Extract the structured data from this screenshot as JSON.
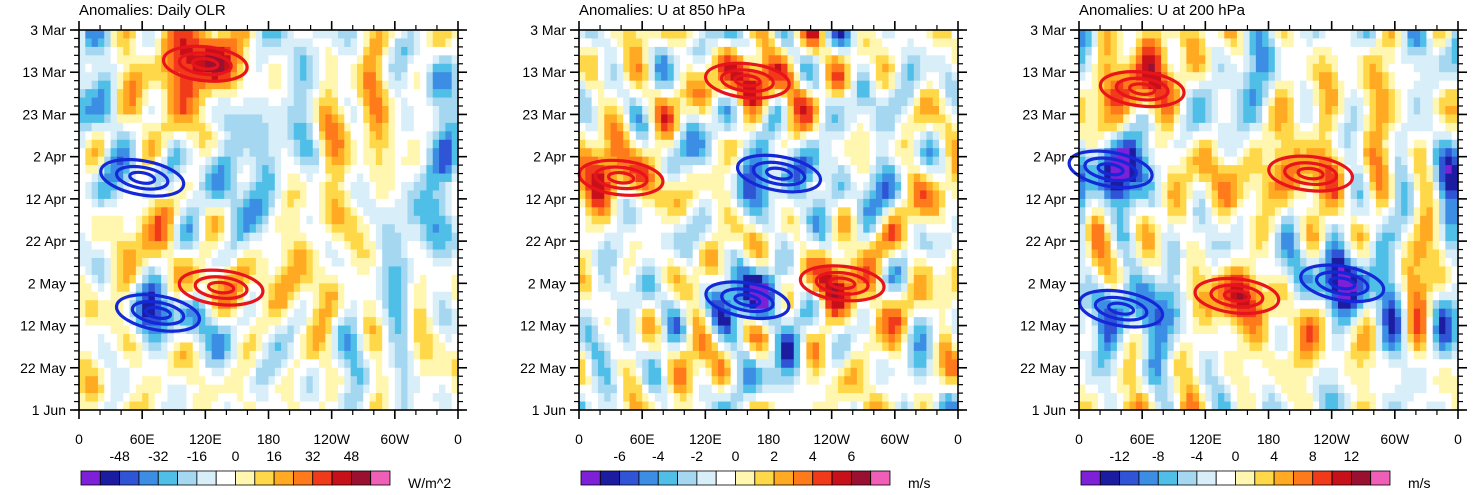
{
  "figure": {
    "time_axis_labels": [
      "3 Mar",
      "13 Mar",
      "23 Mar",
      "2 Apr",
      "12 Apr",
      "22 Apr",
      "2 May",
      "12 May",
      "22 May",
      "1 Jun"
    ],
    "lon_axis_labels": [
      "0",
      "60E",
      "120E",
      "180",
      "120W",
      "60W",
      "0"
    ]
  },
  "chart_data": [
    {
      "type": "heatmap",
      "title": "Anomalies: Daily OLR",
      "x": "longitude (0–360)",
      "y": "time (3 Mar – 1 Jun)",
      "colorbar": {
        "unit": "W/m^2",
        "tick_labels": [
          "-48",
          "-32",
          "-16",
          "0",
          "16",
          "32",
          "48"
        ],
        "range": [
          -56,
          56
        ]
      },
      "contours": {
        "positive_color": "#e8141c",
        "negative_color": "#1428d8",
        "features": [
          {
            "sign": "positive",
            "lon": 120,
            "day": 8
          },
          {
            "sign": "negative",
            "lon": 60,
            "day": 35
          },
          {
            "sign": "positive",
            "lon": 135,
            "day": 61
          },
          {
            "sign": "negative",
            "lon": 75,
            "day": 67
          }
        ]
      }
    },
    {
      "type": "heatmap",
      "title": "Anomalies: U at 850 hPa",
      "x": "longitude (0–360)",
      "y": "time (3 Mar – 1 Jun)",
      "colorbar": {
        "unit": "m/s",
        "tick_labels": [
          "-6",
          "-4",
          "-2",
          "0",
          "2",
          "4",
          "6"
        ],
        "range": [
          -7,
          7
        ]
      },
      "contours": {
        "positive_color": "#e8141c",
        "negative_color": "#1428d8",
        "features": [
          {
            "sign": "positive",
            "lon": 160,
            "day": 12
          },
          {
            "sign": "negative",
            "lon": 190,
            "day": 34
          },
          {
            "sign": "positive",
            "lon": 40,
            "day": 35
          },
          {
            "sign": "negative",
            "lon": 160,
            "day": 64
          },
          {
            "sign": "positive",
            "lon": 250,
            "day": 60
          }
        ]
      }
    },
    {
      "type": "heatmap",
      "title": "Anomalies: U at 200 hPa",
      "x": "longitude (0–360)",
      "y": "time (3 Mar – 1 Jun)",
      "colorbar": {
        "unit": "m/s",
        "tick_labels": [
          "-12",
          "-8",
          "-4",
          "0",
          "4",
          "8",
          "12"
        ],
        "range": [
          -14,
          14
        ]
      },
      "contours": {
        "positive_color": "#e8141c",
        "negative_color": "#1428d8",
        "features": [
          {
            "sign": "positive",
            "lon": 60,
            "day": 14
          },
          {
            "sign": "negative",
            "lon": 30,
            "day": 33
          },
          {
            "sign": "positive",
            "lon": 220,
            "day": 34
          },
          {
            "sign": "negative",
            "lon": 250,
            "day": 60
          },
          {
            "sign": "positive",
            "lon": 150,
            "day": 63
          },
          {
            "sign": "negative",
            "lon": 40,
            "day": 66
          }
        ]
      }
    }
  ]
}
